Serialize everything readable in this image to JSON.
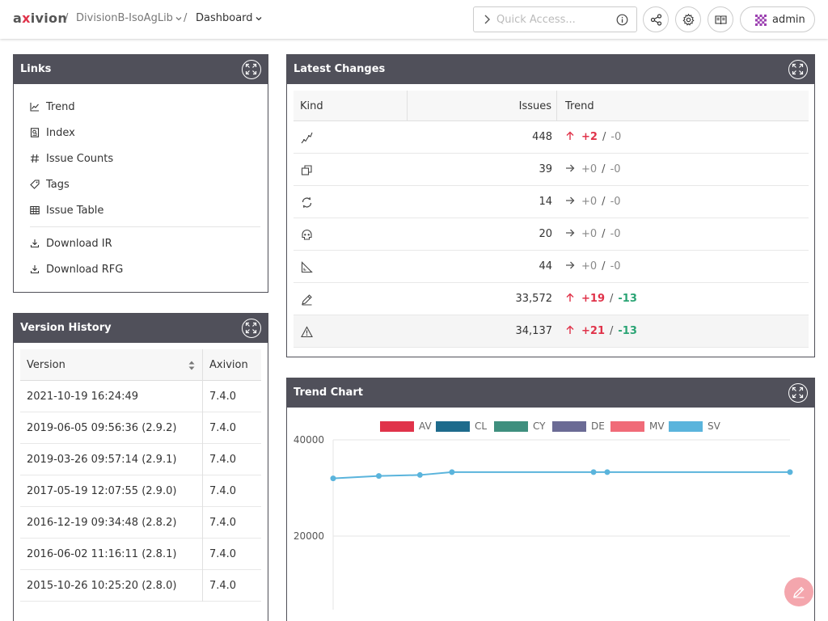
{
  "header": {
    "logo_prefix": "a",
    "logo_x": "x",
    "logo_suffix": "ivion",
    "breadcrumb": [
      {
        "label": "/"
      },
      {
        "label": "DivisionB-IsoAgLib"
      },
      {
        "label": "/"
      },
      {
        "label": "Dashboard"
      }
    ],
    "quick_access_placeholder": "Quick Access...",
    "user": "admin"
  },
  "links": {
    "title": "Links",
    "items": [
      {
        "label": "Trend",
        "icon": "line-chart-icon"
      },
      {
        "label": "Index",
        "icon": "index-icon"
      },
      {
        "label": "Issue Counts",
        "icon": "hash-icon"
      },
      {
        "label": "Tags",
        "icon": "tag-icon"
      },
      {
        "label": "Issue Table",
        "icon": "table-icon"
      }
    ],
    "downloads": [
      {
        "label": "Download IR",
        "icon": "download-icon"
      },
      {
        "label": "Download RFG",
        "icon": "download-icon"
      }
    ]
  },
  "latest_changes": {
    "title": "Latest Changes",
    "columns": [
      "Kind",
      "Issues",
      "Trend"
    ],
    "rows": [
      {
        "kind_icon": "architecture-icon",
        "issues": "448",
        "direction": "up",
        "added": "+2",
        "removed": "-0"
      },
      {
        "kind_icon": "clone-icon",
        "issues": "39",
        "direction": "right",
        "added": "+0",
        "removed": "-0"
      },
      {
        "kind_icon": "cycle-icon",
        "issues": "14",
        "direction": "right",
        "added": "+0",
        "removed": "-0"
      },
      {
        "kind_icon": "dead-code-icon",
        "issues": "20",
        "direction": "right",
        "added": "+0",
        "removed": "-0"
      },
      {
        "kind_icon": "metric-icon",
        "issues": "44",
        "direction": "right",
        "added": "+0",
        "removed": "-0"
      },
      {
        "kind_icon": "style-violation-icon",
        "issues": "33,572",
        "direction": "up",
        "added": "+19",
        "removed": "-13"
      },
      {
        "kind_icon": "warning-icon",
        "issues": "34,137",
        "direction": "up",
        "added": "+21",
        "removed": "-13"
      }
    ]
  },
  "version_history": {
    "title": "Version History",
    "columns": [
      "Version",
      "Axivion"
    ],
    "rows": [
      {
        "version": "2021-10-19 16:24:49",
        "axivion": "7.4.0"
      },
      {
        "version": "2019-06-05 09:56:36 (2.9.2)",
        "axivion": "7.4.0"
      },
      {
        "version": "2019-03-26 09:57:14 (2.9.1)",
        "axivion": "7.4.0"
      },
      {
        "version": "2017-05-19 12:07:55 (2.9.0)",
        "axivion": "7.4.0"
      },
      {
        "version": "2016-12-19 09:34:48 (2.8.2)",
        "axivion": "7.4.0"
      },
      {
        "version": "2016-06-02 11:16:11 (2.8.1)",
        "axivion": "7.4.0"
      },
      {
        "version": "2015-10-26 10:25:20 (2.8.0)",
        "axivion": "7.4.0"
      }
    ]
  },
  "trend_chart": {
    "title": "Trend Chart"
  },
  "colors": {
    "header_bg": "#50505a",
    "positive": "#e0334a",
    "negative": "#2aa474"
  },
  "chart_data": {
    "type": "line",
    "title": "",
    "xlabel": "",
    "ylabel": "",
    "ylim": [
      0,
      40000
    ],
    "yticks": [
      "40000",
      "20000"
    ],
    "legend": [
      {
        "name": "AV",
        "color": "#e0334a"
      },
      {
        "name": "CL",
        "color": "#1e6b8c"
      },
      {
        "name": "CY",
        "color": "#3f8f7e"
      },
      {
        "name": "DE",
        "color": "#6b6b95"
      },
      {
        "name": "MV",
        "color": "#f06b78"
      },
      {
        "name": "SV",
        "color": "#5ab4dc"
      }
    ],
    "legend_position": "top",
    "grid": true,
    "series": [
      {
        "name": "SV",
        "values": [
          32000,
          32500,
          32700,
          33300,
          33300,
          33300,
          33300
        ]
      }
    ],
    "x_fraction": [
      0.0,
      0.1,
      0.19,
      0.26,
      0.57,
      0.6,
      1.0
    ]
  }
}
